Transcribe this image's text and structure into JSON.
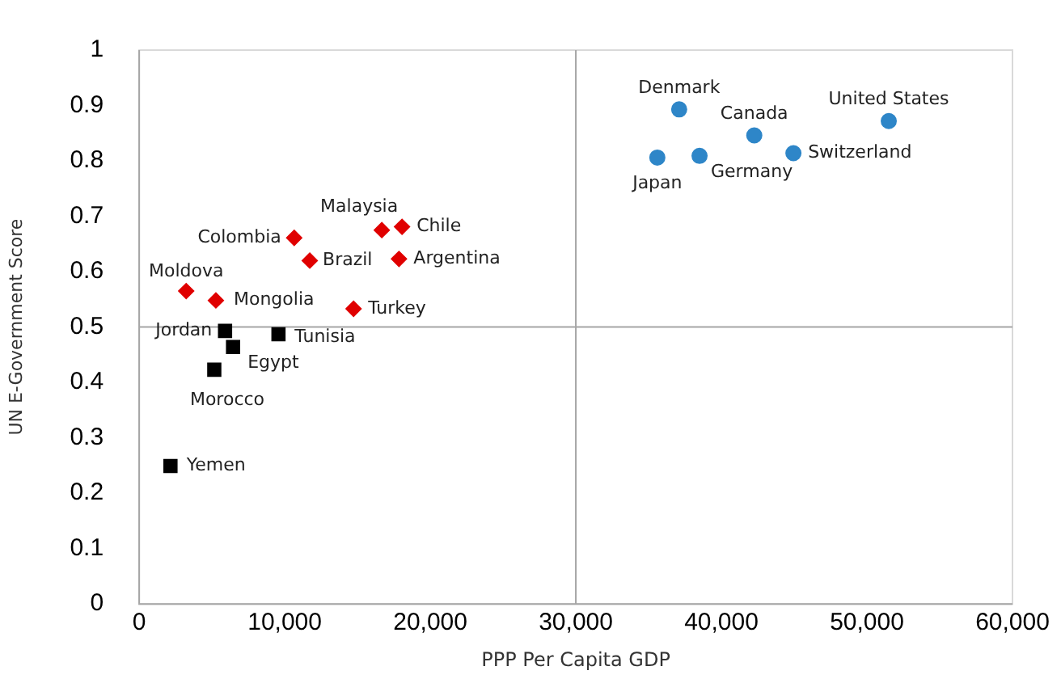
{
  "chart_data": {
    "type": "scatter",
    "xlabel": "PPP Per Capita GDP",
    "ylabel": "UN E-Government Score",
    "xlim": [
      0,
      60000
    ],
    "xticks": [
      {
        "value": 0,
        "label": "0"
      },
      {
        "value": 10000,
        "label": "10,000"
      },
      {
        "value": 20000,
        "label": "20,000"
      },
      {
        "value": 30000,
        "label": "30,000"
      },
      {
        "value": 40000,
        "label": "40,000"
      },
      {
        "value": 50000,
        "label": "50,000"
      },
      {
        "value": 60000,
        "label": "60,000"
      }
    ],
    "ylim": [
      0,
      1
    ],
    "yticks": [
      0,
      0.1,
      0.2,
      0.3,
      0.4,
      0.5,
      0.6,
      0.7,
      0.8,
      0.9,
      1
    ],
    "grid": false,
    "legend": false,
    "ref_lines": [
      {
        "axis": "x",
        "value": 30000,
        "color": "#a6a6a6"
      },
      {
        "axis": "y",
        "value": 0.5,
        "color": "#a6a6a6"
      }
    ],
    "series": [
      {
        "color": "#2e86c8",
        "marker": "circle",
        "x": [
          37100,
          42260,
          51500,
          35600,
          38500,
          44950
        ],
        "values": [
          0.893,
          0.846,
          0.872,
          0.806,
          0.809,
          0.814
        ]
      },
      {
        "color": "#e00000",
        "marker": "diamond",
        "x": [
          10650,
          16670,
          18060,
          11720,
          17850,
          3230,
          5270,
          14730
        ],
        "values": [
          0.661,
          0.675,
          0.681,
          0.62,
          0.623,
          0.565,
          0.548,
          0.533
        ]
      },
      {
        "color": "#000000",
        "marker": "square",
        "x": [
          5900,
          6450,
          9570,
          5160,
          2150
        ],
        "values": [
          0.493,
          0.464,
          0.487,
          0.423,
          0.249
        ]
      }
    ],
    "annotations": [
      {
        "text": "Denmark",
        "x": 37100,
        "y": 0.893
      },
      {
        "text": "Canada",
        "x": 42260,
        "y": 0.846
      },
      {
        "text": "United States",
        "x": 51500,
        "y": 0.872
      },
      {
        "text": "Japan",
        "x": 35600,
        "y": 0.806
      },
      {
        "text": "Germany",
        "x": 38500,
        "y": 0.809
      },
      {
        "text": "Switzerland",
        "x": 44950,
        "y": 0.814
      },
      {
        "text": "Colombia",
        "x": 10650,
        "y": 0.661
      },
      {
        "text": "Malaysia",
        "x": 16670,
        "y": 0.675
      },
      {
        "text": "Chile",
        "x": 18060,
        "y": 0.681
      },
      {
        "text": "Brazil",
        "x": 11720,
        "y": 0.62
      },
      {
        "text": "Argentina",
        "x": 17850,
        "y": 0.623
      },
      {
        "text": "Moldova",
        "x": 3230,
        "y": 0.565
      },
      {
        "text": "Mongolia",
        "x": 5270,
        "y": 0.548
      },
      {
        "text": "Turkey",
        "x": 14730,
        "y": 0.533
      },
      {
        "text": "Jordan",
        "x": 5900,
        "y": 0.493
      },
      {
        "text": "Egypt",
        "x": 6450,
        "y": 0.464
      },
      {
        "text": "Tunisia",
        "x": 9570,
        "y": 0.487
      },
      {
        "text": "Morocco",
        "x": 5160,
        "y": 0.423
      },
      {
        "text": "Yemen",
        "x": 2150,
        "y": 0.249
      }
    ]
  }
}
